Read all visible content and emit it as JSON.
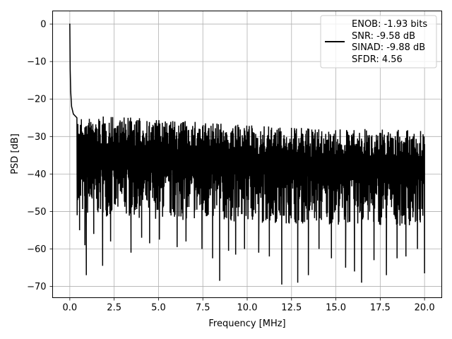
{
  "chart_data": {
    "type": "line",
    "title": "",
    "xlabel": "Frequency [MHz]",
    "ylabel": "PSD [dB]",
    "xlim": [
      -0.97,
      20.97
    ],
    "ylim": [
      -73.0,
      3.5
    ],
    "xticks": [
      0.0,
      2.5,
      5.0,
      7.5,
      10.0,
      12.5,
      15.0,
      17.5,
      20.0
    ],
    "xtick_labels": [
      "0.0",
      "2.5",
      "5.0",
      "7.5",
      "10.0",
      "12.5",
      "15.0",
      "17.5",
      "20.0"
    ],
    "yticks": [
      0,
      -10,
      -20,
      -30,
      -40,
      -50,
      -60,
      -70
    ],
    "ytick_labels": [
      "0",
      "−10",
      "−20",
      "−30",
      "−40",
      "−50",
      "−60",
      "−70"
    ],
    "grid": true,
    "legend": {
      "placement": "top-right",
      "lines": [
        "ENOB: -1.93 bits",
        "SNR: -9.58 dB",
        "SINAD: -9.88 dB",
        "SFDR: 4.56"
      ]
    },
    "series": [
      {
        "color": "#000000",
        "x_range": [
          0.0,
          20.0
        ],
        "peak": {
          "x": 0.0,
          "y": 0.0
        },
        "initial_decay": [
          [
            0.0,
            0.0
          ],
          [
            0.02,
            -12.0
          ],
          [
            0.05,
            -18.0
          ],
          [
            0.1,
            -22.0
          ],
          [
            0.2,
            -24.0
          ],
          [
            0.4,
            -25.0
          ]
        ],
        "envelope_upper": [
          [
            0.4,
            -25.0
          ],
          [
            2.5,
            -24.5
          ],
          [
            5.0,
            -25.5
          ],
          [
            7.5,
            -26.0
          ],
          [
            10.0,
            -27.0
          ],
          [
            12.5,
            -27.5
          ],
          [
            15.0,
            -28.0
          ],
          [
            17.5,
            -28.0
          ],
          [
            20.0,
            -28.5
          ]
        ],
        "envelope_lower": [
          [
            0.4,
            -51.0
          ],
          [
            5.0,
            -52.0
          ],
          [
            10.0,
            -53.0
          ],
          [
            15.0,
            -53.5
          ],
          [
            20.0,
            -54.0
          ]
        ],
        "deep_dips": [
          [
            0.55,
            -55.0
          ],
          [
            0.85,
            -59.0
          ],
          [
            0.93,
            -67.0
          ],
          [
            1.35,
            -56.0
          ],
          [
            1.85,
            -64.5
          ],
          [
            2.3,
            -58.0
          ],
          [
            3.45,
            -61.0
          ],
          [
            4.05,
            -57.0
          ],
          [
            4.5,
            -58.5
          ],
          [
            5.05,
            -57.5
          ],
          [
            6.05,
            -59.5
          ],
          [
            6.55,
            -58.0
          ],
          [
            7.45,
            -60.0
          ],
          [
            8.05,
            -62.5
          ],
          [
            8.45,
            -68.5
          ],
          [
            8.95,
            -60.5
          ],
          [
            9.35,
            -61.5
          ],
          [
            9.85,
            -60.0
          ],
          [
            10.65,
            -61.0
          ],
          [
            11.25,
            -62.0
          ],
          [
            11.95,
            -69.5
          ],
          [
            12.85,
            -69.0
          ],
          [
            13.45,
            -67.0
          ],
          [
            14.05,
            -60.0
          ],
          [
            14.75,
            -62.5
          ],
          [
            15.55,
            -65.0
          ],
          [
            16.05,
            -66.0
          ],
          [
            16.45,
            -69.0
          ],
          [
            17.15,
            -63.0
          ],
          [
            17.85,
            -67.0
          ],
          [
            18.45,
            -62.5
          ],
          [
            18.95,
            -62.0
          ],
          [
            19.6,
            -60.0
          ],
          [
            20.0,
            -66.5
          ]
        ]
      }
    ]
  }
}
